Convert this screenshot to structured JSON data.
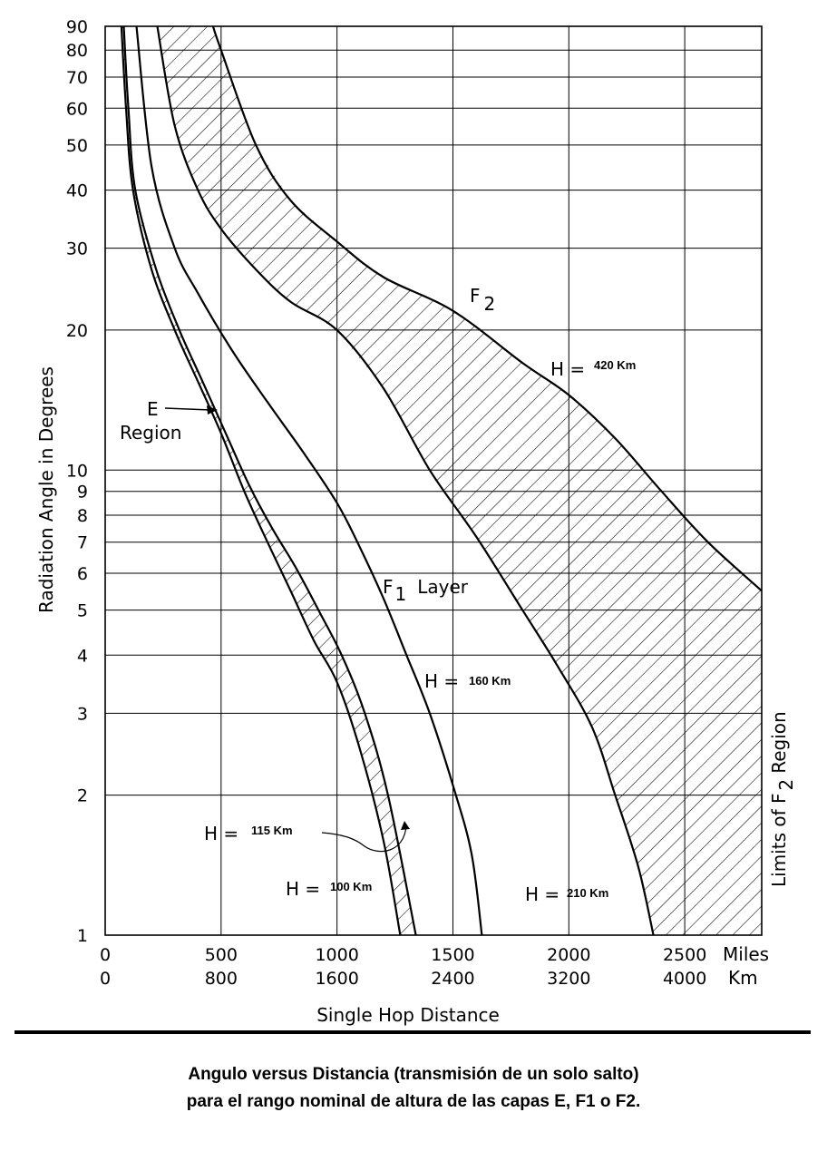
{
  "chart_data": {
    "type": "line",
    "title": "",
    "xlabel": "Single Hop Distance",
    "ylabel": "Radiation Angle in Degrees",
    "y_scale": "log",
    "ylim": [
      1,
      90
    ],
    "xlim": [
      0,
      2832
    ],
    "x_unit_primary": "Miles",
    "x_unit_secondary": "Km",
    "x_ticks_miles": [
      0,
      500,
      1000,
      1500,
      2000,
      2500
    ],
    "x_ticks_km": [
      0,
      800,
      1600,
      2400,
      3200,
      4000
    ],
    "y_ticks": [
      1,
      2,
      3,
      4,
      5,
      6,
      7,
      8,
      9,
      10,
      20,
      30,
      40,
      50,
      60,
      70,
      80,
      90
    ],
    "grid": true,
    "series": [
      {
        "name": "H = 100 Km",
        "x": [
          70,
          90,
          120,
          200,
          300,
          400,
          500,
          600,
          700,
          800,
          900,
          1000,
          1100,
          1200,
          1273
        ],
        "y": [
          90,
          60,
          40,
          27,
          20,
          15.5,
          12,
          9,
          7,
          5.5,
          4.3,
          3.5,
          2.5,
          1.6,
          1
        ]
      },
      {
        "name": "H = 115 Km",
        "x": [
          80,
          100,
          130,
          220,
          320,
          420,
          520,
          620,
          720,
          820,
          920,
          1020,
          1120,
          1220,
          1340
        ],
        "y": [
          90,
          60,
          40,
          27,
          20,
          15.5,
          12,
          9.3,
          7.5,
          6.2,
          5,
          4,
          3,
          2,
          1
        ]
      },
      {
        "name": "H = 160 Km",
        "x": [
          135,
          200,
          300,
          400,
          550,
          700,
          850,
          1000,
          1100,
          1200,
          1300,
          1400,
          1500,
          1580,
          1625
        ],
        "y": [
          90,
          45,
          30,
          24,
          18,
          14,
          11,
          8.5,
          6.8,
          5.3,
          4,
          3,
          2.1,
          1.5,
          1
        ]
      },
      {
        "name": "H = 210 Km",
        "x": [
          225,
          300,
          400,
          500,
          650,
          800,
          1000,
          1200,
          1400,
          1600,
          1800,
          1950,
          2100,
          2200,
          2300,
          2365
        ],
        "y": [
          90,
          55,
          40,
          33,
          27,
          23,
          20,
          15,
          10,
          7.2,
          5,
          3.8,
          2.8,
          2,
          1.4,
          1
        ]
      },
      {
        "name": "H = 420 Km",
        "x": [
          465,
          500,
          650,
          800,
          1000,
          1200,
          1500,
          1800,
          2000,
          2200,
          2400,
          2600,
          2832
        ],
        "y": [
          90,
          80,
          50,
          38,
          31,
          26,
          22,
          17,
          14.5,
          11.7,
          9,
          7,
          5.5
        ]
      }
    ],
    "annotations": {
      "f2": {
        "letter": "F",
        "sub": "2"
      },
      "f1": {
        "letter": "F",
        "sub": "1",
        "word": "Layer"
      },
      "e_region": [
        "E",
        "Region"
      ],
      "limits": {
        "text": "Limits of F",
        "sub": "2",
        "tail": "Region"
      },
      "h_prefix": "H =",
      "h_labels": [
        "420 Km",
        "160 Km",
        "115 Km",
        "100 Km",
        "210 Km"
      ]
    }
  },
  "caption": {
    "line1": "Angulo versus Distancia (transmisión de un solo salto)",
    "line2": "para el rango nominal de altura de las capas E, F1 o F2."
  }
}
